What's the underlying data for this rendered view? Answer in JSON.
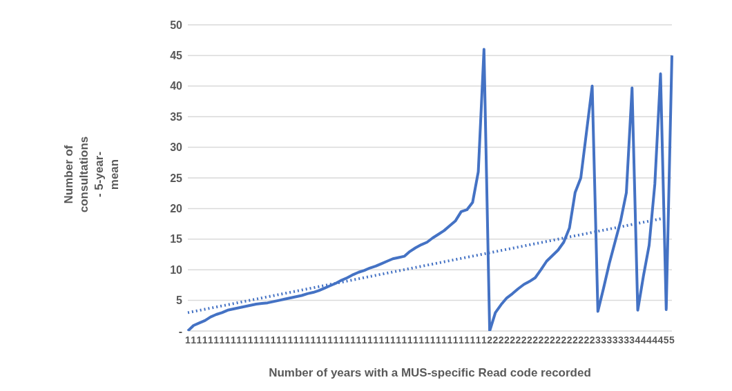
{
  "chart_data": {
    "type": "line",
    "xlabel": "Number of years with a MUS-specific Read code recorded",
    "ylabel": "Number of consultations  - 5-year-mean",
    "categories": [
      "1",
      "1",
      "1",
      "1",
      "1",
      "1",
      "1",
      "1",
      "1",
      "1",
      "1",
      "1",
      "1",
      "1",
      "1",
      "1",
      "1",
      "1",
      "1",
      "1",
      "1",
      "1",
      "1",
      "1",
      "1",
      "1",
      "1",
      "1",
      "1",
      "1",
      "1",
      "1",
      "1",
      "1",
      "1",
      "1",
      "1",
      "1",
      "1",
      "1",
      "1",
      "1",
      "1",
      "1",
      "1",
      "1",
      "1",
      "1",
      "1",
      "1",
      "1",
      "1",
      "1",
      "2",
      "2",
      "2",
      "2",
      "2",
      "2",
      "2",
      "2",
      "2",
      "2",
      "2",
      "2",
      "2",
      "2",
      "2",
      "2",
      "2",
      "2",
      "2",
      "3",
      "3",
      "3",
      "3",
      "3",
      "3",
      "3",
      "4",
      "4",
      "4",
      "4",
      "4",
      "5",
      "5"
    ],
    "series": [
      {
        "color": "#4472c4",
        "line_style": "solid",
        "values": [
          0,
          0.9,
          1.3,
          1.7,
          2.3,
          2.7,
          3.0,
          3.4,
          3.6,
          3.8,
          4.0,
          4.2,
          4.4,
          4.5,
          4.6,
          4.8,
          5.0,
          5.2,
          5.4,
          5.6,
          5.8,
          6.1,
          6.3,
          6.6,
          7.0,
          7.4,
          7.8,
          8.3,
          8.7,
          9.2,
          9.6,
          9.9,
          10.3,
          10.6,
          11,
          11.4,
          11.8,
          12,
          12.2,
          13,
          13.6,
          14.1,
          14.5,
          15.2,
          15.8,
          16.4,
          17.2,
          18,
          19.5,
          19.8,
          21,
          26,
          46,
          0,
          3,
          4.3,
          5.4,
          6.1,
          6.9,
          7.6,
          8.1,
          8.7,
          10,
          11.4,
          12.3,
          13.2,
          14.5,
          16.8,
          22.6,
          25,
          32.5,
          40,
          3.2,
          7,
          11,
          14.5,
          18,
          22.6,
          39.7,
          3.4,
          9,
          14,
          24,
          42,
          3.5,
          45
        ]
      },
      {
        "type": "line",
        "color": "#4472c4",
        "line_style": "dotted",
        "values": [
          3,
          null,
          null,
          null,
          null,
          null,
          null,
          null,
          null,
          null,
          null,
          null,
          null,
          null,
          null,
          null,
          null,
          null,
          null,
          null,
          null,
          null,
          null,
          null,
          null,
          null,
          null,
          null,
          null,
          null,
          null,
          null,
          null,
          null,
          null,
          null,
          null,
          null,
          null,
          null,
          null,
          null,
          null,
          null,
          null,
          null,
          null,
          null,
          null,
          null,
          null,
          null,
          null,
          null,
          null,
          null,
          null,
          null,
          null,
          null,
          null,
          null,
          null,
          null,
          null,
          null,
          null,
          null,
          null,
          null,
          null,
          null,
          null,
          null,
          null,
          null,
          null,
          null,
          null,
          null,
          null,
          null,
          null,
          null,
          18.5,
          null
        ]
      }
    ],
    "ylim": [
      0,
      50
    ],
    "yticks": [
      {
        "value": 0,
        "label": "-"
      },
      5,
      10,
      15,
      20,
      25,
      30,
      35,
      40,
      45,
      50
    ],
    "grid": "y",
    "marker": "none",
    "legend": false
  }
}
